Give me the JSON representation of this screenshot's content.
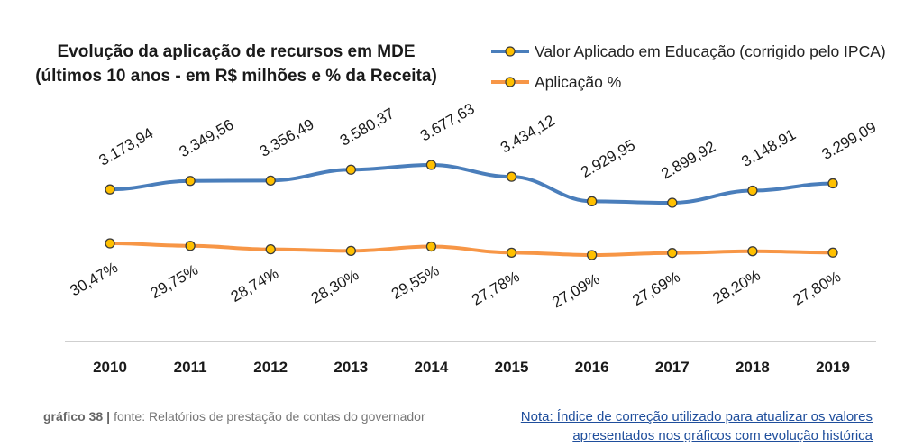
{
  "title_line1": "Evolução da aplicação de recursos em MDE",
  "title_line2": "(últimos 10 anos - em R$ milhões e % da Receita)",
  "footer": {
    "figure_number": "gráfico 38",
    "separator": "|",
    "source": "fonte: Relatórios de prestação de contas do governador",
    "note": "Nota: Índice de correção utilizado para atualizar os valores apresentados nos gráficos com evolução histórica"
  },
  "colors": {
    "series_1": "#4a7ebb",
    "series_2": "#f79646",
    "marker_fill": "#ffc000",
    "marker_stroke": "#3a3a3a",
    "axis": "#bfbfbf"
  },
  "chart_data": {
    "type": "line",
    "title": "Evolução da aplicação de recursos em MDE (últimos 10 anos - em R$ milhões e % da Receita)",
    "categories": [
      "2010",
      "2011",
      "2012",
      "2013",
      "2014",
      "2015",
      "2016",
      "2017",
      "2018",
      "2019"
    ],
    "legend_position": "top-right",
    "grid": false,
    "series": [
      {
        "name": "Valor Aplicado em Educação (corrigido pelo IPCA)",
        "values": [
          3173.94,
          3349.56,
          3356.49,
          3580.37,
          3677.63,
          3434.12,
          2929.95,
          2899.92,
          3148.91,
          3299.09
        ],
        "labels": [
          "3.173,94",
          "3.349,56",
          "3.356,49",
          "3.580,37",
          "3.677,63",
          "3.434,12",
          "2.929,95",
          "2.899,92",
          "3.148,91",
          "3.299,09"
        ]
      },
      {
        "name": "Aplicação %",
        "values": [
          30.47,
          29.75,
          28.74,
          28.3,
          29.55,
          27.78,
          27.09,
          27.69,
          28.2,
          27.8
        ],
        "labels": [
          "30,47%",
          "29,75%",
          "28,74%",
          "28,30%",
          "29,55%",
          "27,78%",
          "27,09%",
          "27,69%",
          "28,20%",
          "27,80%"
        ]
      }
    ]
  }
}
